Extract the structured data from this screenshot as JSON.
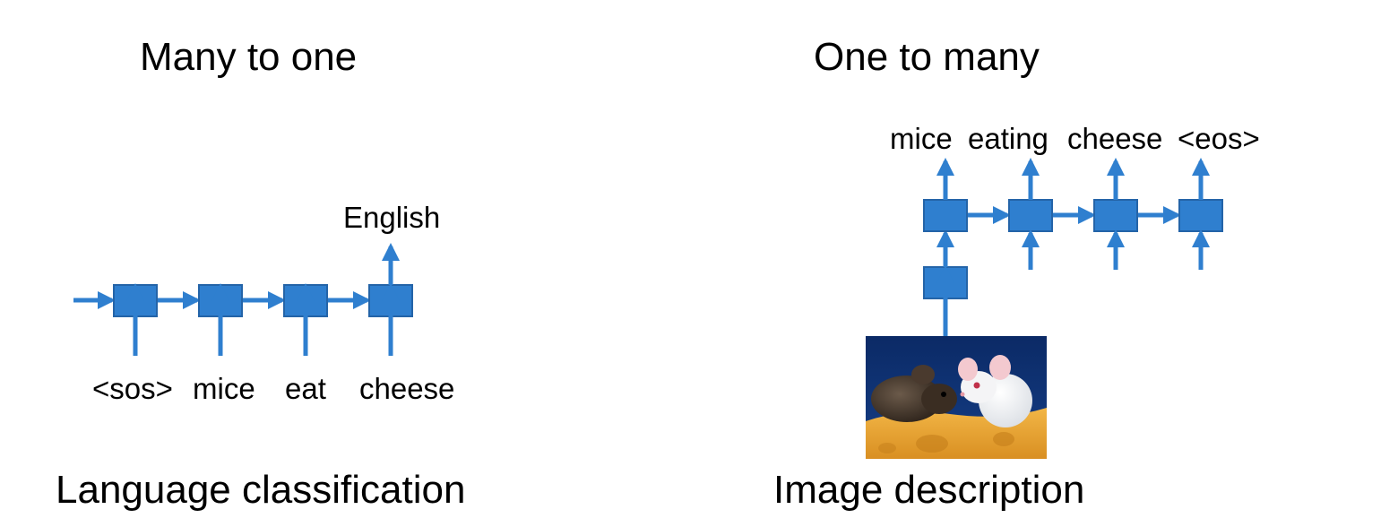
{
  "left": {
    "title": "Many to one",
    "output_label": "English",
    "input_tokens": [
      "<sos>",
      "mice",
      "eat",
      "cheese"
    ],
    "caption": "Language classification"
  },
  "right": {
    "title": "One to many",
    "output_tokens": [
      "mice",
      "eating",
      "cheese",
      "<eos>"
    ],
    "caption": "Image description",
    "image": "mice-on-cheese-photo"
  },
  "colors": {
    "box": "#2f7fcf",
    "box_border": "#2464a8",
    "arrow": "#2f7fcf"
  }
}
